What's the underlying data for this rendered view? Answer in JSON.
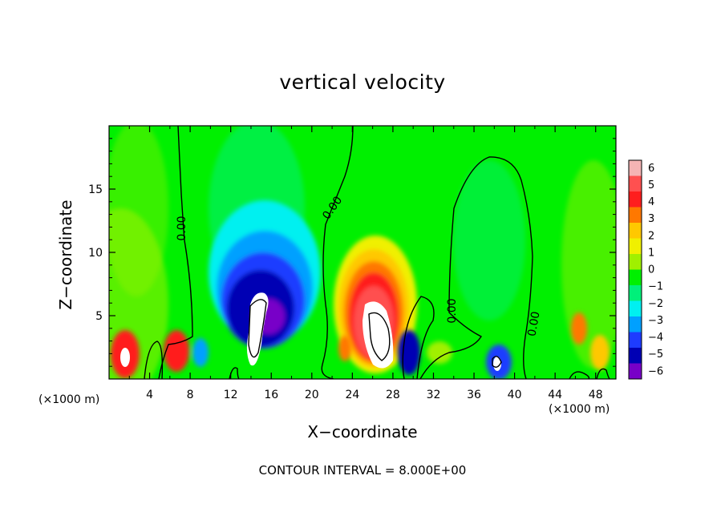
{
  "chart_data": {
    "type": "heatmap",
    "title": "vertical velocity",
    "xlabel": "X−coordinate",
    "ylabel": "Z−coordinate",
    "x_unit_label": "(×1000 m)",
    "xlim": [
      0,
      50
    ],
    "ylim": [
      0,
      20
    ],
    "x_ticks": [
      4,
      8,
      12,
      16,
      20,
      24,
      28,
      32,
      36,
      40,
      44,
      48
    ],
    "y_ticks": [
      5,
      10,
      15
    ],
    "colorbar": {
      "levels": [
        "6",
        "5",
        "4",
        "3",
        "2",
        "1",
        "0",
        "−1",
        "−2",
        "−3",
        "−4",
        "−5",
        "−6"
      ],
      "colors": [
        "#f5b4b4",
        "#ff5050",
        "#ff1e1e",
        "#ff7800",
        "#ffc800",
        "#f0f000",
        "#a0f000",
        "#00f000",
        "#00f07a",
        "#00f0f0",
        "#00a0ff",
        "#1e3cff",
        "#0000b4",
        "#7800c8"
      ]
    },
    "contour_label": "0.00",
    "footnote": "CONTOUR INTERVAL = 8.000E+00",
    "features": [
      {
        "sign": "positive",
        "x": 1.5,
        "z": 2,
        "peak": 6
      },
      {
        "sign": "positive",
        "x": 6.5,
        "z": 2.5,
        "peak": 4
      },
      {
        "sign": "negative",
        "x": 15,
        "z": 5,
        "peak": -6
      },
      {
        "sign": "positive",
        "x": 26,
        "z": 4.5,
        "peak": 6
      },
      {
        "sign": "negative",
        "x": 29.5,
        "z": 2,
        "peak": -5
      },
      {
        "sign": "negative",
        "x": 38.5,
        "z": 1.5,
        "peak": -6
      },
      {
        "sign": "positive",
        "x": 46,
        "z": 3.5,
        "peak": 4
      }
    ]
  }
}
